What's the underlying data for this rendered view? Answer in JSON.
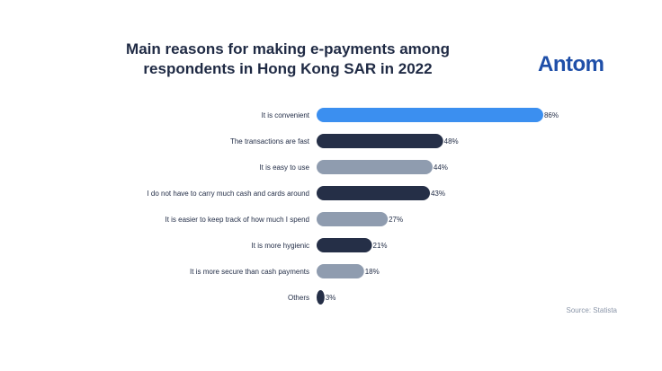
{
  "header": {
    "title_line1": "Main reasons for making e-payments among",
    "title_line2": "respondents in Hong Kong SAR in 2022",
    "brand": "Antom"
  },
  "footer": {
    "source": "Source: Statista"
  },
  "colors": {
    "highlight": "#3b8ff0",
    "dark": "#252f47",
    "grey": "#8f9caf"
  },
  "chart_data": {
    "type": "bar",
    "orientation": "horizontal",
    "title": "Main reasons for making e-payments among respondents in Hong Kong SAR in 2022",
    "xlim": [
      0,
      100
    ],
    "grid": false,
    "categories": [
      "It is convenient",
      "The transactions are fast",
      "It is easy to use",
      "I do not have to carry much cash and cards around",
      "It is easier to keep track of how much I spend",
      "It is more hygienic",
      "It is more secure than cash payments",
      "Others"
    ],
    "values": [
      86,
      48,
      44,
      43,
      27,
      21,
      18,
      3
    ],
    "value_labels": [
      "86%",
      "48%",
      "44%",
      "43%",
      "27%",
      "21%",
      "18%",
      "3%"
    ],
    "bar_colors": [
      "#3b8ff0",
      "#252f47",
      "#8f9caf",
      "#252f47",
      "#8f9caf",
      "#252f47",
      "#8f9caf",
      "#252f47"
    ]
  }
}
